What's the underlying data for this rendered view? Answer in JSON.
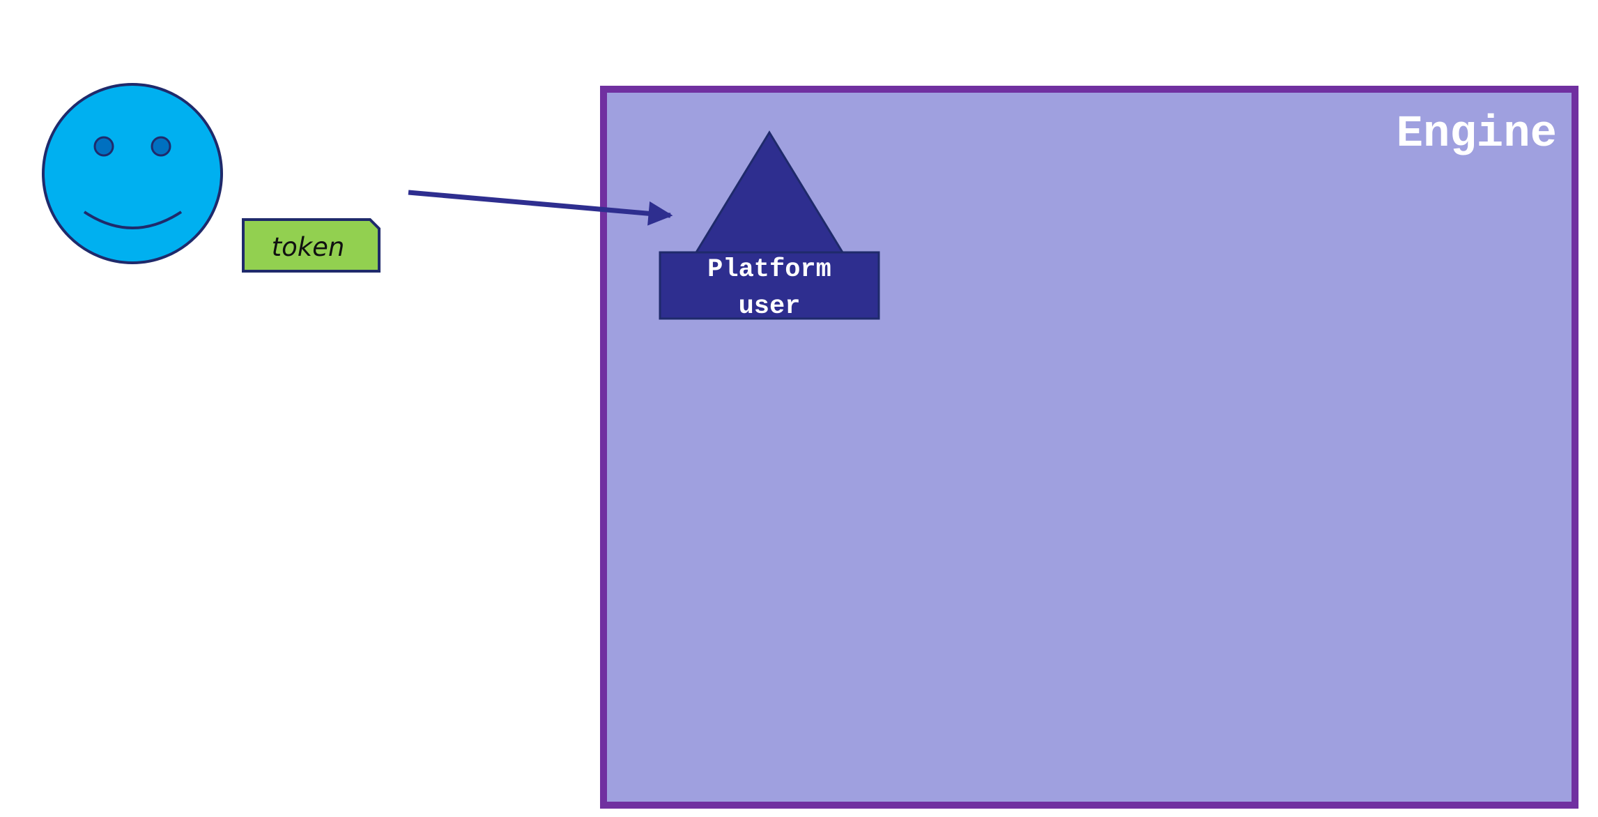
{
  "diagram": {
    "engine": {
      "label": "Engine"
    },
    "platform_user": {
      "line1": "Platform",
      "line2": "user"
    },
    "token": {
      "label": "token"
    },
    "user": {
      "name": "user-smiley"
    }
  },
  "colors": {
    "engine_fill": "#9fa0df",
    "engine_border": "#7030a0",
    "navy": "#2e2e8f",
    "smiley_fill": "#00b0f0",
    "smiley_outline": "#1f2a6b",
    "eye_fill": "#0070c0",
    "token_fill": "#92d050",
    "token_border": "#1f2a6b"
  }
}
